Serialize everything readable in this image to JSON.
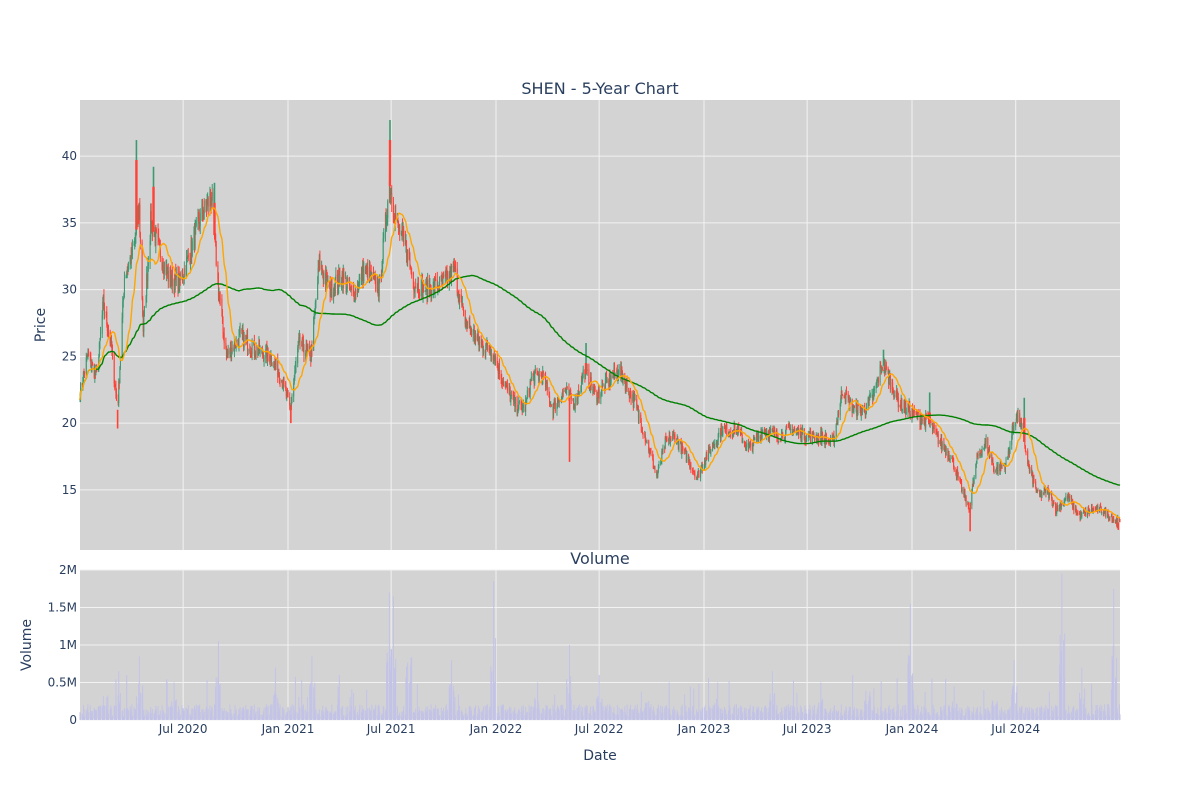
{
  "chart_data": [
    {
      "type": "candlestick",
      "title": "SHEN - 5-Year Chart",
      "xlabel": "",
      "ylabel": "Price",
      "ylim": [
        10.5,
        44.2
      ],
      "yticks": [
        15,
        20,
        25,
        30,
        35,
        40
      ],
      "grid": true,
      "legend": "none",
      "colors": {
        "increasing": "#3d9970",
        "decreasing": "#ff4136",
        "sma_fast": "#ffa500",
        "sma_slow": "#008000",
        "plot_bg": "#d3d3d3",
        "grid": "#f2f2f2"
      },
      "anchors": [
        [
          "2020-01-02",
          22.3
        ],
        [
          "2020-01-15",
          25.0
        ],
        [
          "2020-02-01",
          23.5
        ],
        [
          "2020-02-12",
          29.0
        ],
        [
          "2020-02-25",
          26.0
        ],
        [
          "2020-03-08",
          21.0
        ],
        [
          "2020-03-20",
          31.0
        ],
        [
          "2020-04-05",
          33.0
        ],
        [
          "2020-04-15",
          36.0
        ],
        [
          "2020-04-22",
          27.0
        ],
        [
          "2020-05-05",
          35.0
        ],
        [
          "2020-05-20",
          33.0
        ],
        [
          "2020-06-05",
          31.0
        ],
        [
          "2020-06-25",
          30.5
        ],
        [
          "2020-07-15",
          33.0
        ],
        [
          "2020-08-01",
          35.5
        ],
        [
          "2020-08-20",
          37.0
        ],
        [
          "2020-09-01",
          30.0
        ],
        [
          "2020-09-15",
          25.0
        ],
        [
          "2020-10-10",
          26.5
        ],
        [
          "2020-11-05",
          25.5
        ],
        [
          "2020-12-01",
          25.0
        ],
        [
          "2020-12-20",
          23.5
        ],
        [
          "2021-01-05",
          21.0
        ],
        [
          "2021-01-20",
          26.0
        ],
        [
          "2021-02-10",
          25.0
        ],
        [
          "2021-02-25",
          32.0
        ],
        [
          "2021-03-15",
          30.0
        ],
        [
          "2021-04-05",
          31.0
        ],
        [
          "2021-04-25",
          29.5
        ],
        [
          "2021-05-15",
          31.5
        ],
        [
          "2021-06-10",
          30.0
        ],
        [
          "2021-06-28",
          38.0
        ],
        [
          "2021-07-10",
          35.0
        ],
        [
          "2021-07-28",
          33.0
        ],
        [
          "2021-08-10",
          30.5
        ],
        [
          "2021-09-01",
          30.0
        ],
        [
          "2021-10-01",
          30.5
        ],
        [
          "2021-10-20",
          31.5
        ],
        [
          "2021-11-05",
          28.0
        ],
        [
          "2021-12-01",
          26.0
        ],
        [
          "2021-12-25",
          25.5
        ],
        [
          "2022-01-15",
          23.0
        ],
        [
          "2022-02-01",
          21.5
        ],
        [
          "2022-02-20",
          21.0
        ],
        [
          "2022-03-05",
          23.5
        ],
        [
          "2022-03-25",
          23.5
        ],
        [
          "2022-04-10",
          21.0
        ],
        [
          "2022-05-01",
          22.5
        ],
        [
          "2022-05-20",
          21.5
        ],
        [
          "2022-06-05",
          24.0
        ],
        [
          "2022-06-25",
          22.0
        ],
        [
          "2022-07-15",
          23.0
        ],
        [
          "2022-08-05",
          24.0
        ],
        [
          "2022-09-01",
          21.5
        ],
        [
          "2022-09-20",
          19.0
        ],
        [
          "2022-10-10",
          16.0
        ],
        [
          "2022-10-25",
          18.5
        ],
        [
          "2022-11-10",
          19.0
        ],
        [
          "2022-12-01",
          17.5
        ],
        [
          "2022-12-20",
          16.0
        ],
        [
          "2023-01-05",
          17.5
        ],
        [
          "2023-02-01",
          19.5
        ],
        [
          "2023-03-01",
          19.5
        ],
        [
          "2023-03-20",
          18.0
        ],
        [
          "2023-04-15",
          19.5
        ],
        [
          "2023-05-10",
          19.0
        ],
        [
          "2023-06-05",
          19.5
        ],
        [
          "2023-07-01",
          19.0
        ],
        [
          "2023-07-25",
          19.0
        ],
        [
          "2023-08-15",
          18.5
        ],
        [
          "2023-09-01",
          22.5
        ],
        [
          "2023-09-20",
          21.0
        ],
        [
          "2023-10-10",
          21.0
        ],
        [
          "2023-10-25",
          22.0
        ],
        [
          "2023-11-10",
          24.5
        ],
        [
          "2023-11-25",
          23.0
        ],
        [
          "2023-12-10",
          21.5
        ],
        [
          "2023-12-25",
          21.0
        ],
        [
          "2024-01-10",
          20.5
        ],
        [
          "2024-02-01",
          20.0
        ],
        [
          "2024-02-20",
          18.5
        ],
        [
          "2024-03-10",
          17.5
        ],
        [
          "2024-03-25",
          15.5
        ],
        [
          "2024-04-10",
          13.5
        ],
        [
          "2024-04-25",
          17.5
        ],
        [
          "2024-05-10",
          18.5
        ],
        [
          "2024-05-25",
          16.5
        ],
        [
          "2024-06-15",
          17.0
        ],
        [
          "2024-06-30",
          20.5
        ],
        [
          "2024-07-10",
          20.0
        ],
        [
          "2024-07-25",
          16.5
        ],
        [
          "2024-08-10",
          14.5
        ],
        [
          "2024-08-25",
          15.0
        ],
        [
          "2024-09-10",
          13.5
        ],
        [
          "2024-10-01",
          14.5
        ],
        [
          "2024-10-20",
          13.0
        ],
        [
          "2024-11-10",
          13.5
        ],
        [
          "2024-11-30",
          13.5
        ],
        [
          "2024-12-30",
          12.5
        ]
      ],
      "spikes": [
        [
          "2020-04-10",
          41.2
        ],
        [
          "2020-05-10",
          39.2
        ],
        [
          "2020-08-25",
          38.0
        ],
        [
          "2021-06-29",
          42.7
        ],
        [
          "2022-06-08",
          26.0
        ],
        [
          "2023-11-12",
          25.5
        ],
        [
          "2024-02-01",
          22.3
        ],
        [
          "2024-07-16",
          21.9
        ]
      ],
      "dips": [
        [
          "2020-03-08",
          19.6
        ],
        [
          "2021-01-06",
          20.0
        ],
        [
          "2022-05-10",
          17.1
        ],
        [
          "2024-04-12",
          11.9
        ],
        [
          "2024-12-28",
          12.0
        ]
      ]
    },
    {
      "type": "bar",
      "title": "Volume",
      "xlabel": "Date",
      "ylabel": "Volume",
      "ylim": [
        0,
        2000000
      ],
      "yticks": [
        "0",
        "0.5M",
        "1M",
        "1.5M",
        "2M"
      ],
      "yticks_values": [
        0,
        500000,
        1000000,
        1500000,
        2000000
      ],
      "xticks": [
        "Jul 2020",
        "Jan 2021",
        "Jul 2021",
        "Jan 2022",
        "Jul 2022",
        "Jan 2023",
        "Jul 2023",
        "Jan 2024",
        "Jul 2024"
      ],
      "xticks_dates": [
        "2020-07-01",
        "2021-01-01",
        "2021-07-01",
        "2022-01-01",
        "2022-07-01",
        "2023-01-01",
        "2023-07-01",
        "2024-01-01",
        "2024-07-01"
      ],
      "x_range": [
        "2020-01-02",
        "2024-12-31"
      ],
      "colors": {
        "bar": "#c3c3e8"
      },
      "typical": 150000,
      "peaks": [
        [
          "2020-02-15",
          550000
        ],
        [
          "2020-03-10",
          650000
        ],
        [
          "2020-04-15",
          850000
        ],
        [
          "2020-06-15",
          500000
        ],
        [
          "2020-09-01",
          1050000
        ],
        [
          "2020-12-10",
          700000
        ],
        [
          "2021-02-12",
          850000
        ],
        [
          "2021-04-01",
          600000
        ],
        [
          "2021-06-28",
          1700000
        ],
        [
          "2021-07-05",
          1650000
        ],
        [
          "2021-08-01",
          1400000
        ],
        [
          "2021-10-15",
          800000
        ],
        [
          "2021-12-28",
          1850000
        ],
        [
          "2022-03-15",
          500000
        ],
        [
          "2022-05-10",
          1000000
        ],
        [
          "2022-07-01",
          600000
        ],
        [
          "2022-09-25",
          500000
        ],
        [
          "2023-01-25",
          500000
        ],
        [
          "2023-05-01",
          650000
        ],
        [
          "2023-07-25",
          500000
        ],
        [
          "2023-10-15",
          650000
        ],
        [
          "2023-12-29",
          1550000
        ],
        [
          "2024-03-15",
          450000
        ],
        [
          "2024-05-25",
          450000
        ],
        [
          "2024-06-28",
          800000
        ],
        [
          "2024-09-20",
          1950000
        ],
        [
          "2024-10-25",
          700000
        ],
        [
          "2024-12-20",
          1750000
        ]
      ]
    }
  ]
}
